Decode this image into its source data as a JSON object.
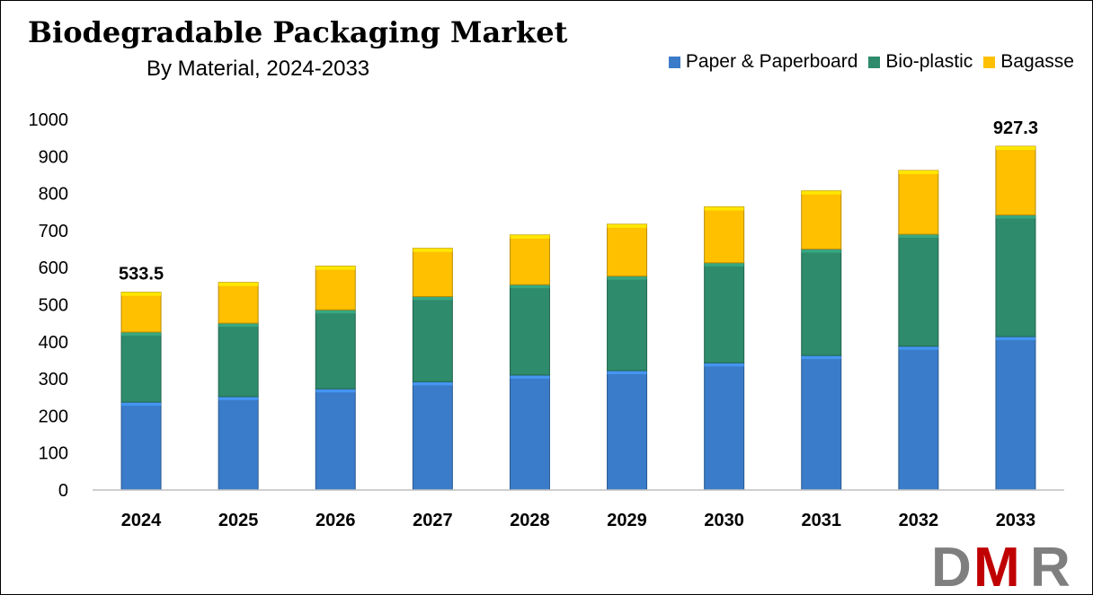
{
  "chart_data": {
    "type": "bar",
    "stacked": true,
    "title": "Biodegradable Packaging Market",
    "subtitle": "By Material, 2024-2033",
    "categories": [
      "2024",
      "2025",
      "2026",
      "2027",
      "2028",
      "2029",
      "2030",
      "2031",
      "2032",
      "2033"
    ],
    "series": [
      {
        "name": "Paper & Paperboard",
        "color": "#3a7cc9",
        "values": [
          237,
          252,
          273,
          292,
          310,
          322,
          343,
          363,
          388,
          414
        ]
      },
      {
        "name": "Bio-plastic",
        "color": "#2e8b6b",
        "values": [
          189,
          198,
          213,
          230,
          244,
          255,
          270,
          287,
          302,
          328
        ]
      },
      {
        "name": "Bagasse",
        "color": "#ffc000",
        "values": [
          107.5,
          110,
          118,
          130,
          134,
          140,
          151,
          157,
          172,
          185.3
        ]
      }
    ],
    "annotations": [
      {
        "category": "2024",
        "label": "533.5"
      },
      {
        "category": "2033",
        "label": "927.3"
      }
    ],
    "ylim": [
      0,
      1000
    ],
    "yticks": [
      0,
      100,
      200,
      300,
      400,
      500,
      600,
      700,
      800,
      900,
      1000
    ],
    "xlabel": "",
    "ylabel": "",
    "grid": false,
    "legend_position": "top-right"
  },
  "logo": {
    "text": "DMR",
    "colors": [
      "#7f7f7f",
      "#c00000",
      "#7f7f7f"
    ]
  }
}
